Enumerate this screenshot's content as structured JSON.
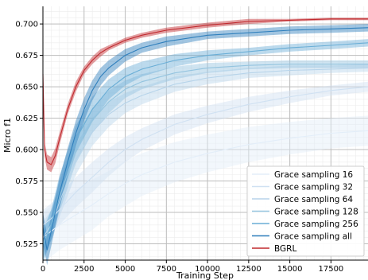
{
  "chart_data": {
    "type": "line",
    "title": "",
    "xlabel": "Training Step",
    "ylabel": "Micro f1",
    "xlim": [
      0,
      19750
    ],
    "ylim": [
      0.512,
      0.714
    ],
    "x_ticks": [
      0,
      2500,
      5000,
      7500,
      10000,
      12500,
      15000,
      17500
    ],
    "y_ticks": [
      0.525,
      0.55,
      0.575,
      0.6,
      0.625,
      0.65,
      0.675,
      0.7
    ],
    "grid": true,
    "legend_position": "bottom-right",
    "series": [
      {
        "name": "Grace sampling 16",
        "color": "#e3eef9",
        "x": [
          0,
          500,
          1000,
          2000,
          3000,
          4000,
          5000,
          6000,
          8000,
          10000,
          12500,
          15000,
          17500,
          19750
        ],
        "y": [
          0.53,
          0.535,
          0.54,
          0.548,
          0.556,
          0.565,
          0.573,
          0.58,
          0.59,
          0.597,
          0.604,
          0.609,
          0.613,
          0.615
        ],
        "band": [
          0.02,
          0.02,
          0.02,
          0.02,
          0.02,
          0.018,
          0.018,
          0.017,
          0.016,
          0.015,
          0.014,
          0.013,
          0.012,
          0.012
        ]
      },
      {
        "name": "Grace sampling 32",
        "color": "#d0e1f2",
        "x": [
          0,
          500,
          1000,
          2000,
          3000,
          4000,
          5000,
          6000,
          8000,
          10000,
          12500,
          15000,
          17500,
          19750
        ],
        "y": [
          0.54,
          0.545,
          0.552,
          0.566,
          0.578,
          0.59,
          0.6,
          0.608,
          0.62,
          0.628,
          0.636,
          0.642,
          0.647,
          0.65
        ],
        "band": [
          0.012,
          0.012,
          0.012,
          0.012,
          0.012,
          0.011,
          0.01,
          0.009,
          0.008,
          0.007,
          0.006,
          0.005,
          0.004,
          0.004
        ]
      },
      {
        "name": "Grace sampling 64",
        "color": "#b7d4ea",
        "x": [
          0,
          500,
          1000,
          2000,
          3000,
          4000,
          5000,
          6000,
          8000,
          10000,
          12500,
          15000,
          17500,
          19750
        ],
        "y": [
          0.53,
          0.54,
          0.558,
          0.592,
          0.614,
          0.628,
          0.637,
          0.643,
          0.652,
          0.657,
          0.661,
          0.663,
          0.664,
          0.665
        ],
        "band": [
          0.012,
          0.012,
          0.012,
          0.012,
          0.011,
          0.01,
          0.008,
          0.007,
          0.006,
          0.005,
          0.004,
          0.004,
          0.003,
          0.003
        ]
      },
      {
        "name": "Grace sampling 128",
        "color": "#94c4df",
        "x": [
          0,
          500,
          1000,
          2000,
          3000,
          4000,
          5000,
          6000,
          8000,
          10000,
          12500,
          15000,
          17500,
          19750
        ],
        "y": [
          0.525,
          0.54,
          0.562,
          0.6,
          0.623,
          0.638,
          0.648,
          0.654,
          0.661,
          0.665,
          0.667,
          0.668,
          0.668,
          0.668
        ],
        "band": [
          0.012,
          0.012,
          0.012,
          0.011,
          0.01,
          0.009,
          0.007,
          0.006,
          0.005,
          0.004,
          0.003,
          0.003,
          0.003,
          0.003
        ]
      },
      {
        "name": "Grace sampling 256",
        "color": "#6aaed6",
        "x": [
          0,
          500,
          1000,
          2000,
          3000,
          4000,
          5000,
          6000,
          8000,
          10000,
          12500,
          15000,
          17500,
          19750
        ],
        "y": [
          0.522,
          0.54,
          0.567,
          0.608,
          0.632,
          0.648,
          0.658,
          0.664,
          0.671,
          0.675,
          0.678,
          0.681,
          0.683,
          0.685
        ],
        "band": [
          0.012,
          0.012,
          0.012,
          0.011,
          0.01,
          0.008,
          0.007,
          0.006,
          0.005,
          0.004,
          0.003,
          0.003,
          0.003,
          0.003
        ]
      },
      {
        "name": "Grace sampling all",
        "color": "#2f7fbc",
        "x": [
          0,
          250,
          500,
          1000,
          1500,
          2000,
          2500,
          3000,
          3500,
          4000,
          5000,
          6000,
          7500,
          10000,
          12500,
          15000,
          17500,
          19750
        ],
        "y": [
          0.538,
          0.52,
          0.535,
          0.565,
          0.59,
          0.613,
          0.632,
          0.647,
          0.658,
          0.665,
          0.675,
          0.681,
          0.686,
          0.691,
          0.693,
          0.695,
          0.696,
          0.697
        ],
        "band": [
          0.012,
          0.012,
          0.012,
          0.012,
          0.011,
          0.01,
          0.009,
          0.008,
          0.007,
          0.006,
          0.005,
          0.004,
          0.004,
          0.003,
          0.003,
          0.003,
          0.003,
          0.003
        ]
      },
      {
        "name": "BGRL",
        "color": "#c0282d",
        "x": [
          0,
          100,
          250,
          500,
          750,
          1000,
          1500,
          2000,
          2500,
          3000,
          3500,
          4000,
          5000,
          6000,
          7500,
          10000,
          12500,
          15000,
          17500,
          19750
        ],
        "y": [
          0.66,
          0.6,
          0.59,
          0.588,
          0.595,
          0.608,
          0.632,
          0.65,
          0.663,
          0.671,
          0.677,
          0.681,
          0.687,
          0.691,
          0.695,
          0.699,
          0.702,
          0.703,
          0.704,
          0.704
        ],
        "band": [
          0.008,
          0.006,
          0.006,
          0.006,
          0.006,
          0.005,
          0.004,
          0.004,
          0.003,
          0.003,
          0.003,
          0.002,
          0.002,
          0.002,
          0.002,
          0.002,
          0.002,
          0.001,
          0.001,
          0.001
        ]
      }
    ]
  }
}
